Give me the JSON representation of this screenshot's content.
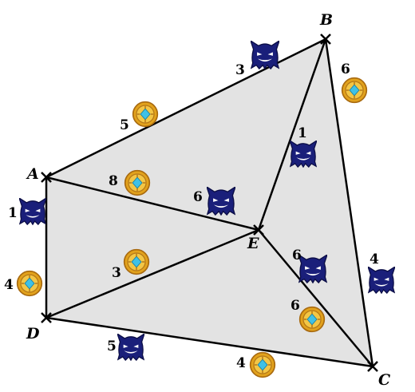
{
  "colors": {
    "region_fill": "#e3e3e3",
    "edge": "#000000",
    "monster_body": "#1a1f7a",
    "monster_dark": "#0b0d45",
    "coin_outer": "#e2a21c",
    "coin_rim": "#a86a10",
    "coin_gem": "#3fc1e6"
  },
  "vertices": [
    {
      "id": "A",
      "label": "A"
    },
    {
      "id": "B",
      "label": "B"
    },
    {
      "id": "C",
      "label": "C"
    },
    {
      "id": "D",
      "label": "D"
    },
    {
      "id": "E",
      "label": "E"
    }
  ],
  "edges": [
    {
      "from": "A",
      "to": "B",
      "monster_value": "3",
      "coin_value": "5"
    },
    {
      "from": "B",
      "to": "C",
      "monster_value": "4",
      "coin_value": "6"
    },
    {
      "from": "C",
      "to": "D",
      "monster_value": "5",
      "coin_value": "4"
    },
    {
      "from": "D",
      "to": "A",
      "monster_value": "1",
      "coin_value": "4"
    },
    {
      "from": "A",
      "to": "E",
      "monster_value": "6",
      "coin_value": "8"
    },
    {
      "from": "B",
      "to": "E",
      "monster_value": "1",
      "coin_value": ""
    },
    {
      "from": "E",
      "to": "C",
      "monster_value": "6",
      "coin_value": "6"
    },
    {
      "from": "D",
      "to": "E",
      "monster_value": "",
      "coin_value": "3"
    }
  ],
  "icons": {
    "monster": "monster-icon",
    "coin": "coin-icon"
  }
}
